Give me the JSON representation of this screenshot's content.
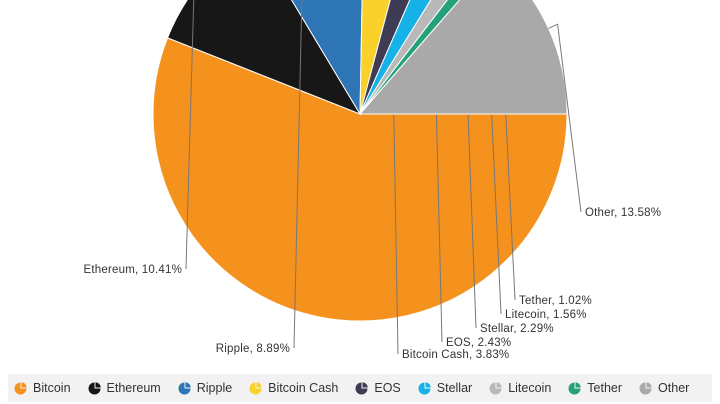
{
  "chart_data": {
    "type": "pie",
    "slices": [
      {
        "label": "Bitcoin",
        "value": 56.0,
        "color": "#f5921e",
        "data_label": ""
      },
      {
        "label": "Ethereum",
        "value": 10.41,
        "color": "#171717",
        "data_label": "Ethereum, 10.41%"
      },
      {
        "label": "Ripple",
        "value": 8.89,
        "color": "#2e75b6",
        "data_label": "Ripple, 8.89%"
      },
      {
        "label": "Bitcoin Cash",
        "value": 3.83,
        "color": "#fad02a",
        "data_label": "Bitcoin Cash, 3.83%"
      },
      {
        "label": "EOS",
        "value": 2.43,
        "color": "#3d3c54",
        "data_label": "EOS, 2.43%"
      },
      {
        "label": "Stellar",
        "value": 2.29,
        "color": "#16b1e6",
        "data_label": "Stellar, 2.29%"
      },
      {
        "label": "Litecoin",
        "value": 1.56,
        "color": "#b9b9b9",
        "data_label": "Litecoin, 1.56%"
      },
      {
        "label": "Tether",
        "value": 1.02,
        "color": "#24a17b",
        "data_label": "Tether, 1.02%"
      },
      {
        "label": "Other",
        "value": 13.58,
        "color": "#a9a9a9",
        "data_label": "Other, 13.58%"
      }
    ],
    "legend_position": "bottom"
  },
  "legend": {
    "items": [
      {
        "label": "Bitcoin",
        "color": "#f5921e"
      },
      {
        "label": "Ethereum",
        "color": "#171717"
      },
      {
        "label": "Ripple",
        "color": "#2e75b6"
      },
      {
        "label": "Bitcoin Cash",
        "color": "#fad02a"
      },
      {
        "label": "EOS",
        "color": "#3d3c54"
      },
      {
        "label": "Stellar",
        "color": "#16b1e6"
      },
      {
        "label": "Litecoin",
        "color": "#b9b9b9"
      },
      {
        "label": "Tether",
        "color": "#24a17b"
      },
      {
        "label": "Other",
        "color": "#a9a9a9"
      }
    ]
  }
}
